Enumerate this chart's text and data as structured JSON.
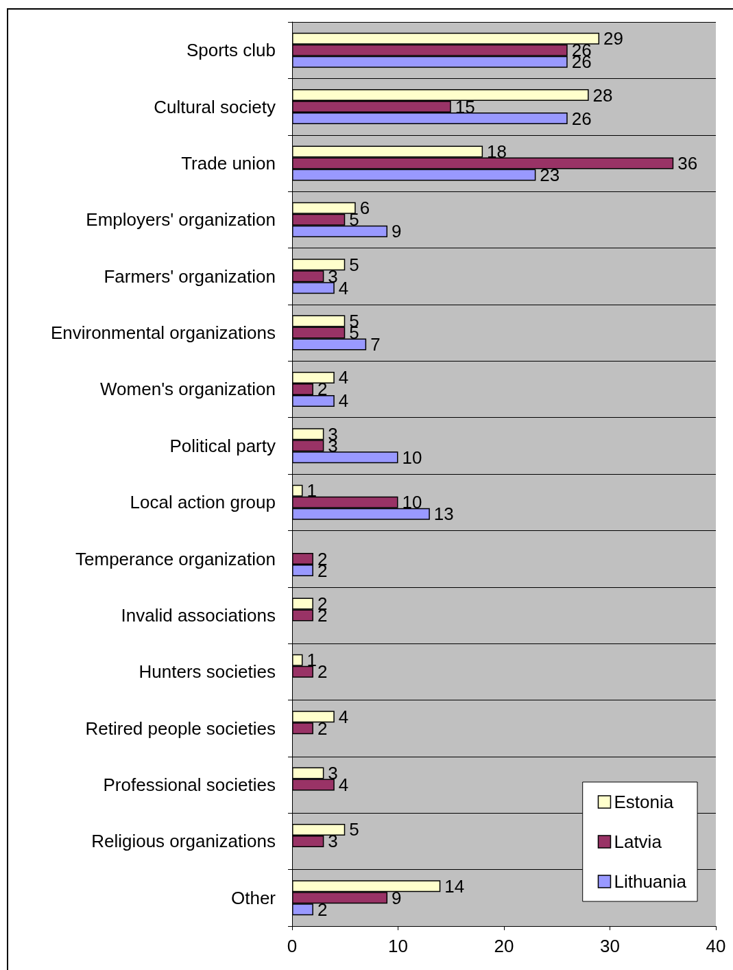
{
  "chart_data": {
    "type": "bar",
    "orientation": "horizontal",
    "categories": [
      "Sports club",
      "Cultural society",
      "Trade union",
      "Employers' organization",
      "Farmers' organization",
      "Environmental organizations",
      "Women's organization",
      "Political party",
      "Local action group",
      "Temperance organization",
      "Invalid associations",
      "Hunters societies",
      "Retired people societies",
      "Professional societies",
      "Religious organizations",
      "Other"
    ],
    "series": [
      {
        "name": "Estonia",
        "color": "#ffffcc",
        "values": [
          29,
          28,
          18,
          6,
          5,
          5,
          4,
          3,
          1,
          null,
          2,
          1,
          4,
          3,
          5,
          14
        ]
      },
      {
        "name": "Latvia",
        "color": "#993366",
        "values": [
          26,
          15,
          36,
          5,
          3,
          5,
          2,
          3,
          10,
          2,
          2,
          2,
          2,
          4,
          3,
          9
        ]
      },
      {
        "name": "Lithuania",
        "color": "#9999ff",
        "values": [
          26,
          26,
          23,
          9,
          4,
          7,
          4,
          10,
          13,
          2,
          null,
          null,
          null,
          null,
          null,
          2
        ]
      }
    ],
    "xlim": [
      0,
      40
    ],
    "xticks": [
      0,
      10,
      20,
      30,
      40
    ],
    "grid": "y",
    "legend": "bottom right",
    "data_labels": true
  }
}
